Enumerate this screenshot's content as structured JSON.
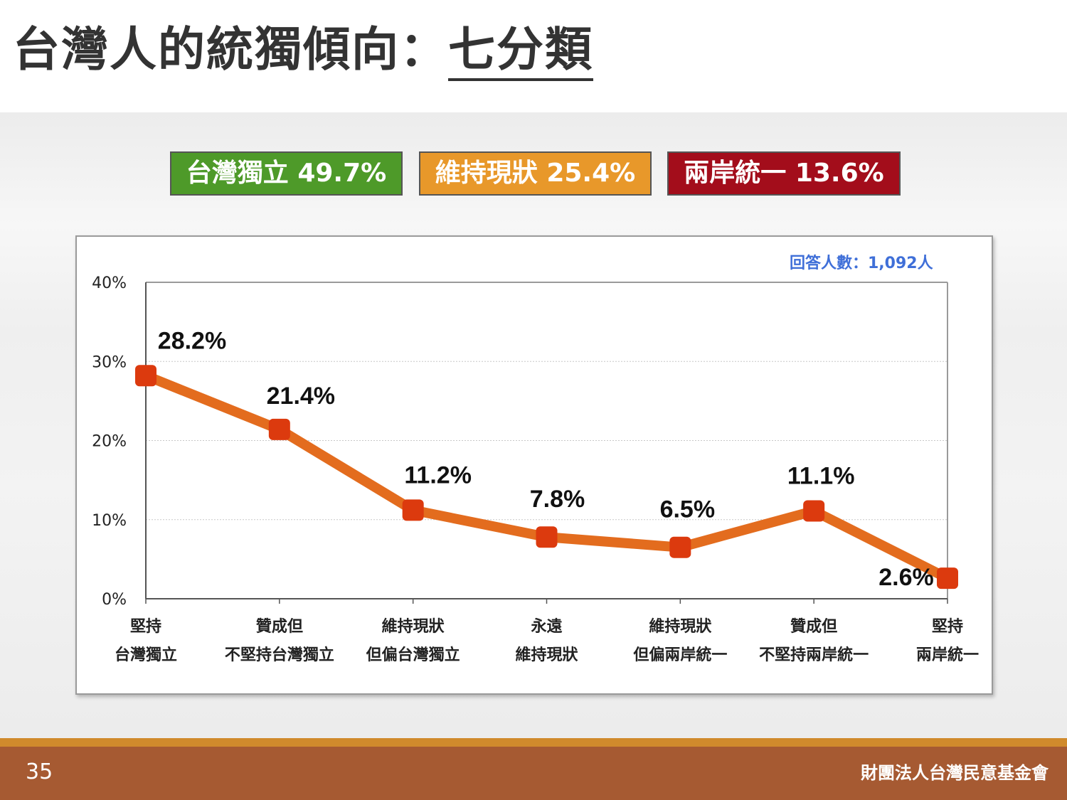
{
  "slide": {
    "title_main": "台灣人的統獨傾向：",
    "title_underlined": "七分類",
    "page_number": "35",
    "organization": "財團法人台灣民意基金會"
  },
  "badges": [
    {
      "label": "台灣獨立 49.7%",
      "color": "#4e9a29"
    },
    {
      "label": "維持現狀 25.4%",
      "color": "#e8982a"
    },
    {
      "label": "兩岸統一 13.6%",
      "color": "#a30d1b"
    }
  ],
  "chart_data": {
    "type": "line",
    "annotation": "回答人數：1,092人",
    "categories": [
      [
        "堅持",
        "台灣獨立"
      ],
      [
        "贊成但",
        "不堅持台灣獨立"
      ],
      [
        "維持現狀",
        "但偏台灣獨立"
      ],
      [
        "永遠",
        "維持現狀"
      ],
      [
        "維持現狀",
        "但偏兩岸統一"
      ],
      [
        "贊成但",
        "不堅持兩岸統一"
      ],
      [
        "堅持",
        "兩岸統一"
      ]
    ],
    "values": [
      28.2,
      21.4,
      11.2,
      7.8,
      6.5,
      11.1,
      2.6
    ],
    "data_labels": [
      "28.2%",
      "21.4%",
      "11.2%",
      "7.8%",
      "6.5%",
      "11.1%",
      "2.6%"
    ],
    "yticks": [
      "0%",
      "10%",
      "20%",
      "30%",
      "40%"
    ],
    "ylim": [
      0,
      40
    ],
    "grid": true,
    "line_color": "#e36c1e",
    "marker_color": "#dc3a0e"
  }
}
